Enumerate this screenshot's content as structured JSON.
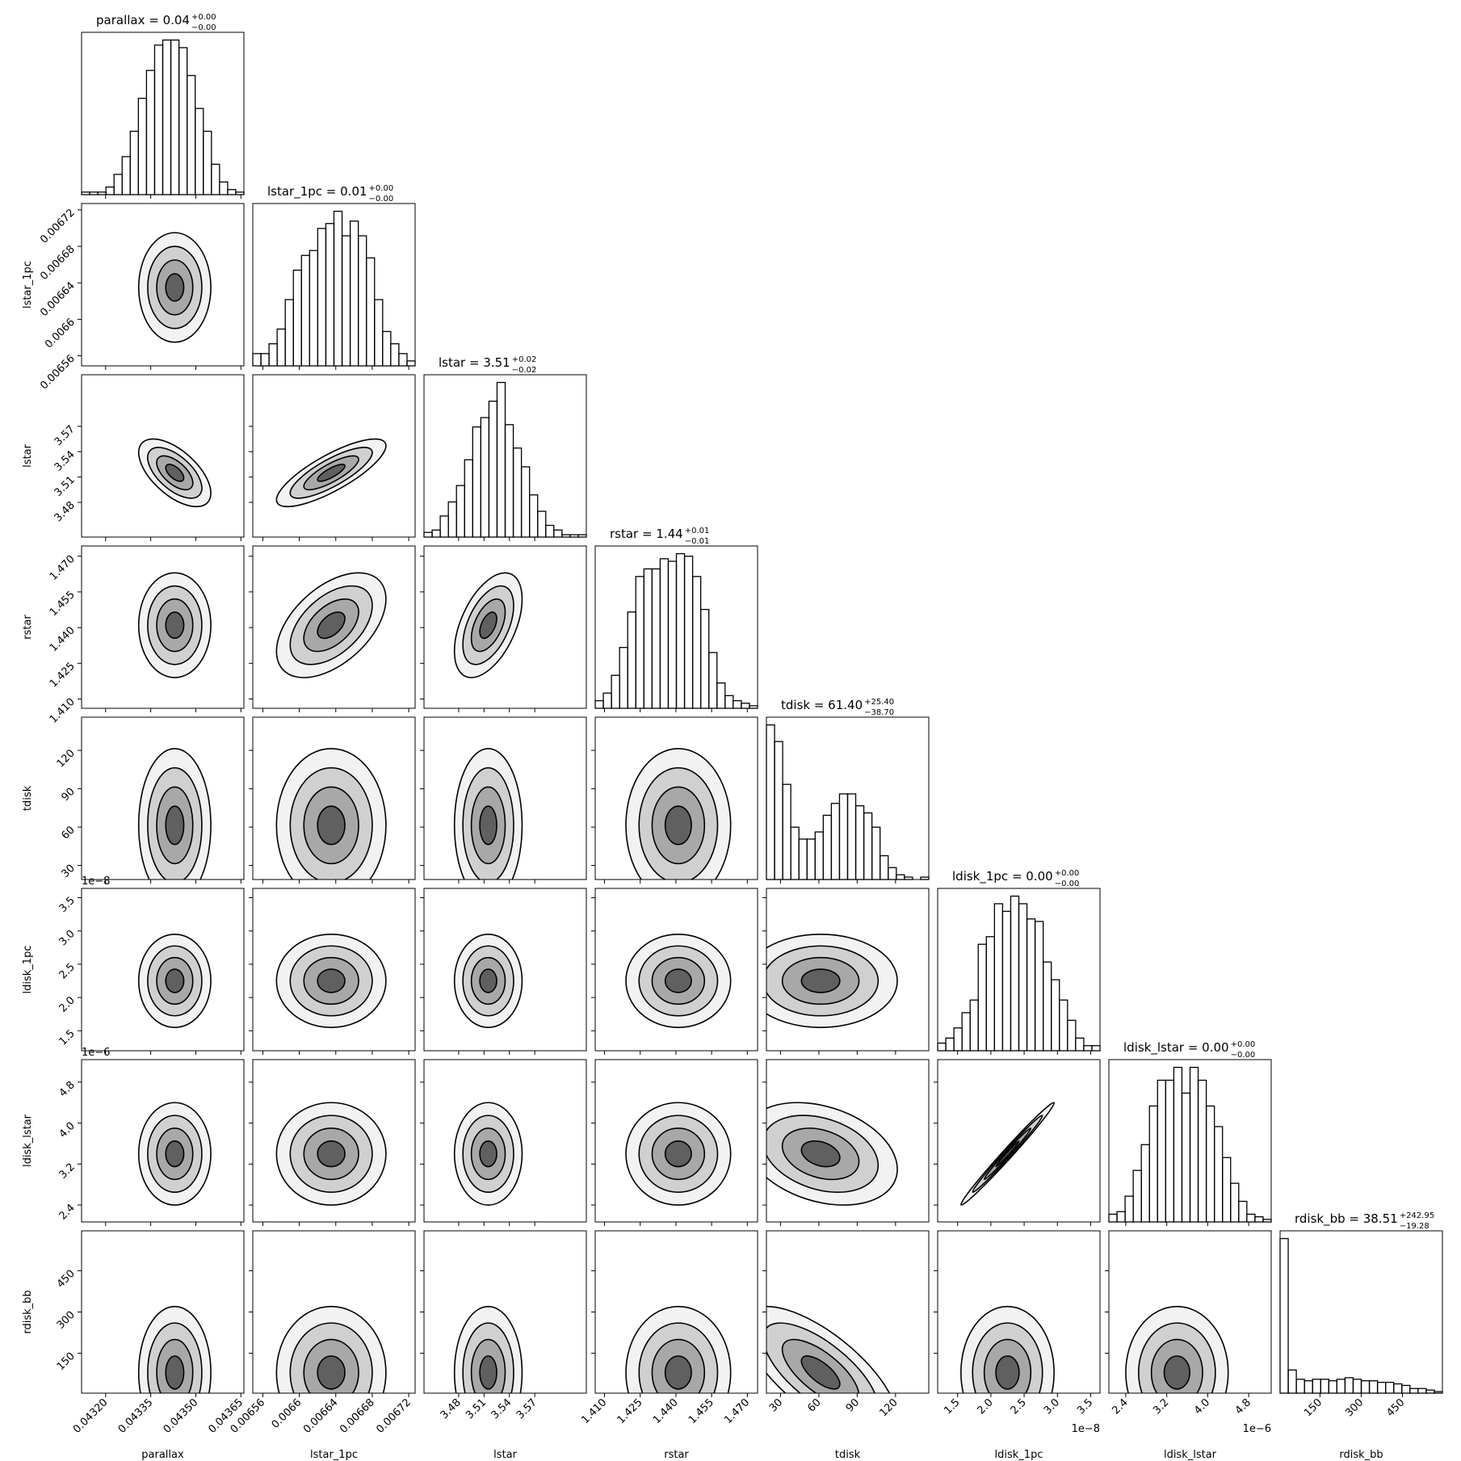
{
  "chart_data": {
    "type": "corner",
    "parameters": [
      {
        "name": "parallax",
        "title": {
          "text": "parallax = 0.04",
          "upper": "+0.00",
          "lower": "−0.00"
        },
        "lim": [
          0.04312,
          0.04366
        ],
        "ticks": [
          {
            "value": 0.0432,
            "label": "0.04320"
          },
          0.04335,
          {
            "value": 0.0435,
            "label": "0.04350"
          },
          0.04365
        ],
        "counts": [
          1,
          1,
          1,
          3,
          8,
          15,
          25,
          38,
          49,
          59,
          61,
          61,
          58,
          47,
          34,
          25,
          12,
          5,
          2,
          1
        ],
        "center": 0.04343,
        "sigma": 6e-05
      },
      {
        "name": "lstar_1pc",
        "title": {
          "text": "lstar_1pc = 0.01",
          "upper": "+0.00",
          "lower": "−0.00"
        },
        "lim": [
          0.006549,
          0.006727
        ],
        "ticks": [
          0.00656,
          0.0066,
          0.00664,
          0.00668,
          0.00672
        ],
        "counts": [
          5,
          5,
          9,
          15,
          27,
          39,
          45,
          47,
          56,
          58,
          63,
          53,
          59,
          53,
          44,
          27,
          14,
          9,
          5,
          2
        ],
        "center": 0.006635,
        "sigma": 3e-05
      },
      {
        "name": "lstar",
        "title": {
          "text": "lstar = 3.51",
          "upper": "+0.02",
          "lower": "−0.02"
        },
        "lim": [
          3.439,
          3.631
        ],
        "ticks": [
          3.48,
          3.51,
          3.54,
          3.57
        ],
        "counts": [
          2,
          3,
          9,
          15,
          22,
          33,
          47,
          51,
          58,
          66,
          48,
          38,
          30,
          18,
          11,
          5,
          3,
          1,
          1,
          1
        ],
        "center": 3.515,
        "sigma": 0.02
      },
      {
        "name": "rstar",
        "title": {
          "text": "rstar = 1.44",
          "upper": "+0.01",
          "lower": "−0.01"
        },
        "lim": [
          1.4061,
          1.4743
        ],
        "ticks": [
          {
            "value": 1.41,
            "label": "1.410"
          },
          1.425,
          {
            "value": 1.44,
            "label": "1.440"
          },
          1.455,
          {
            "value": 1.47,
            "label": "1.470"
          }
        ],
        "counts": [
          3,
          6,
          13,
          24,
          38,
          52,
          55,
          55,
          59,
          58,
          61,
          60,
          52,
          39,
          22,
          10,
          5,
          3,
          2,
          1
        ],
        "center": 1.441,
        "sigma": 0.011
      },
      {
        "name": "tdisk",
        "title": {
          "text": "tdisk = 61.40",
          "upper": "+25.40",
          "lower": "−38.70"
        },
        "lim": [
          19,
          146
        ],
        "ticks": [
          30,
          60,
          90,
          120
        ],
        "counts": [
          65,
          58,
          40,
          22,
          17,
          17,
          20,
          27,
          32,
          36,
          36,
          31,
          28,
          22,
          10,
          5,
          2,
          1,
          0,
          1
        ],
        "center": 61.4,
        "sigma": 30
      },
      {
        "name": "ldisk_1pc",
        "title": {
          "text": "ldisk_1pc = 0.00",
          "upper": "+0.00",
          "lower": "−0.00"
        },
        "lim": [
          1.2e-08,
          3.64e-08
        ],
        "offset": "1e−8",
        "ticks": [
          {
            "value": 1.5e-08,
            "label": "1.5"
          },
          {
            "value": 2e-08,
            "label": "2.0"
          },
          {
            "value": 2.5e-08,
            "label": "2.5"
          },
          {
            "value": 3e-08,
            "label": "3.0"
          },
          {
            "value": 3.5e-08,
            "label": "3.5"
          }
        ],
        "counts": [
          3,
          5,
          9,
          15,
          20,
          42,
          45,
          58,
          55,
          61,
          58,
          52,
          51,
          35,
          28,
          20,
          12,
          5,
          2,
          2
        ],
        "center": 2.25e-08,
        "sigma": 3.5e-09
      },
      {
        "name": "ldisk_lstar",
        "title": {
          "text": "ldisk_lstar = 0.00",
          "upper": "+0.00",
          "lower": "−0.00"
        },
        "lim": [
          2.07e-06,
          5.24e-06
        ],
        "offset": "1e−6",
        "ticks": [
          {
            "value": 2.4e-06,
            "label": "2.4"
          },
          {
            "value": 3.2e-06,
            "label": "3.2"
          },
          {
            "value": 4e-06,
            "label": "4.0"
          },
          {
            "value": 4.8e-06,
            "label": "4.8"
          }
        ],
        "counts": [
          3,
          4,
          10,
          20,
          30,
          45,
          55,
          55,
          60,
          50,
          60,
          55,
          45,
          37,
          25,
          15,
          8,
          3,
          2,
          1
        ],
        "center": 3.4e-06,
        "sigma": 5e-07
      },
      {
        "name": "rdisk_bb",
        "title": {
          "text": "rdisk_bb = 38.51",
          "upper": "+242.95",
          "lower": "−19.28"
        },
        "lim": [
          5,
          595
        ],
        "ticks": [
          150,
          300,
          450
        ],
        "counts": [
          100,
          15,
          9,
          8,
          9,
          9,
          8,
          9,
          10,
          9,
          8,
          8,
          7,
          7,
          6,
          5,
          3,
          3,
          2,
          1
        ],
        "center": 80,
        "sigma": 120
      }
    ],
    "correlations": [
      [
        0
      ],
      [
        -0.6,
        0.8
      ],
      [
        0,
        0.5,
        0.5
      ],
      [
        0,
        0,
        0,
        0
      ],
      [
        0,
        0,
        0,
        0,
        0
      ],
      [
        0,
        0,
        0,
        0,
        -0.3,
        0.99
      ],
      [
        0,
        0,
        0,
        0,
        -0.7,
        0,
        0
      ]
    ]
  }
}
